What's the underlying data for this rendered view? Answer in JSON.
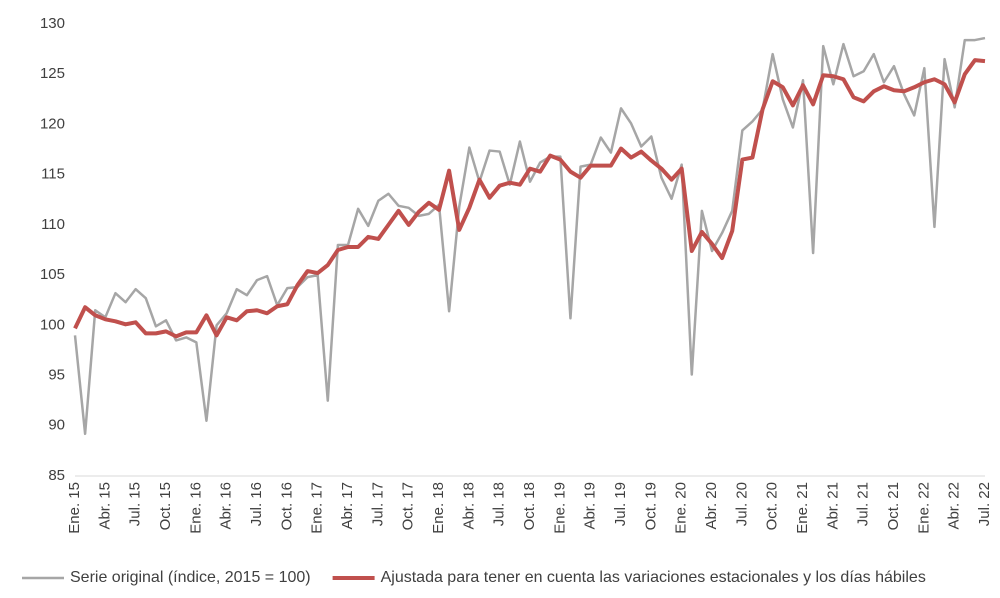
{
  "chart_data": {
    "type": "line",
    "categories": [
      "Ene. 15",
      null,
      null,
      "Abr. 15",
      null,
      null,
      "Jul. 15",
      null,
      null,
      "Oct. 15",
      null,
      null,
      "Ene. 16",
      null,
      null,
      "Abr. 16",
      null,
      null,
      "Jul. 16",
      null,
      null,
      "Oct. 16",
      null,
      null,
      "Ene. 17",
      null,
      null,
      "Abr. 17",
      null,
      null,
      "Jul. 17",
      null,
      null,
      "Oct. 17",
      null,
      null,
      "Ene. 18",
      null,
      null,
      "Abr. 18",
      null,
      null,
      "Jul. 18",
      null,
      null,
      "Oct. 18",
      null,
      null,
      "Ene. 19",
      null,
      null,
      "Abr. 19",
      null,
      null,
      "Jul. 19",
      null,
      null,
      "Oct. 19",
      null,
      null,
      "Ene. 20",
      null,
      null,
      "Abr. 20",
      null,
      null,
      "Jul. 20",
      null,
      null,
      "Oct. 20",
      null,
      null,
      "Ene. 21",
      null,
      null,
      "Abr. 21",
      null,
      null,
      "Jul. 21",
      null,
      null,
      "Oct. 21",
      null,
      null,
      "Ene. 22",
      null,
      null,
      "Abr. 22",
      null,
      null,
      "Jul. 22"
    ],
    "series": [
      {
        "name": "Serie original (índice, 2015 = 100)",
        "color": "#a6a6a6",
        "values": [
          99.0,
          89.2,
          101.5,
          100.8,
          103.2,
          102.3,
          103.6,
          102.7,
          99.9,
          100.5,
          98.5,
          98.8,
          98.3,
          90.5,
          100.0,
          101.2,
          103.6,
          103.0,
          104.5,
          104.9,
          102.0,
          103.7,
          103.8,
          104.8,
          105.0,
          92.5,
          108.0,
          108.0,
          111.6,
          109.9,
          112.4,
          113.1,
          111.9,
          111.7,
          110.9,
          111.1,
          112.0,
          101.4,
          111.8,
          117.7,
          114.3,
          117.4,
          117.3,
          114.0,
          118.3,
          114.3,
          116.2,
          116.8,
          116.8,
          100.7,
          115.8,
          116.0,
          118.7,
          117.2,
          121.6,
          120.1,
          117.8,
          118.8,
          114.7,
          112.6,
          116.0,
          95.1,
          111.4,
          107.4,
          109.2,
          111.4,
          119.4,
          120.3,
          121.5,
          127.0,
          122.5,
          119.7,
          124.4,
          107.2,
          127.8,
          124.0,
          128.0,
          124.8,
          125.3,
          127.0,
          124.2,
          125.8,
          123.0,
          120.9,
          125.6,
          109.8,
          126.5,
          121.7,
          128.4,
          128.4,
          128.6
        ]
      },
      {
        "name": "Ajustada para tener en cuenta las variaciones estacionales y los días hábiles",
        "color": "#c0504d",
        "values": [
          99.7,
          101.8,
          101.0,
          100.6,
          100.4,
          100.1,
          100.3,
          99.2,
          99.2,
          99.4,
          98.9,
          99.3,
          99.3,
          101.0,
          99.0,
          100.8,
          100.5,
          101.4,
          101.5,
          101.2,
          101.9,
          102.1,
          104.0,
          105.4,
          105.2,
          106.0,
          107.5,
          107.8,
          107.8,
          108.8,
          108.6,
          110.0,
          111.4,
          110.0,
          111.3,
          112.2,
          111.5,
          115.4,
          109.5,
          111.7,
          114.5,
          112.7,
          113.9,
          114.2,
          114.0,
          115.6,
          115.3,
          116.9,
          116.5,
          115.3,
          114.7,
          115.9,
          115.9,
          115.9,
          117.6,
          116.7,
          117.3,
          116.4,
          115.6,
          114.5,
          115.6,
          107.4,
          109.3,
          108.1,
          106.7,
          109.4,
          116.5,
          116.7,
          121.5,
          124.3,
          123.7,
          121.9,
          123.9,
          122.0,
          124.9,
          124.8,
          124.5,
          122.7,
          122.3,
          123.3,
          123.8,
          123.4,
          123.3,
          123.7,
          124.2,
          124.5,
          124.0,
          122.2,
          125.0,
          126.4,
          126.3
        ]
      }
    ],
    "ylim": [
      85,
      130
    ],
    "yticks": [
      85,
      90,
      95,
      100,
      105,
      110,
      115,
      120,
      125,
      130
    ],
    "grid": false,
    "legend": "bottom"
  }
}
